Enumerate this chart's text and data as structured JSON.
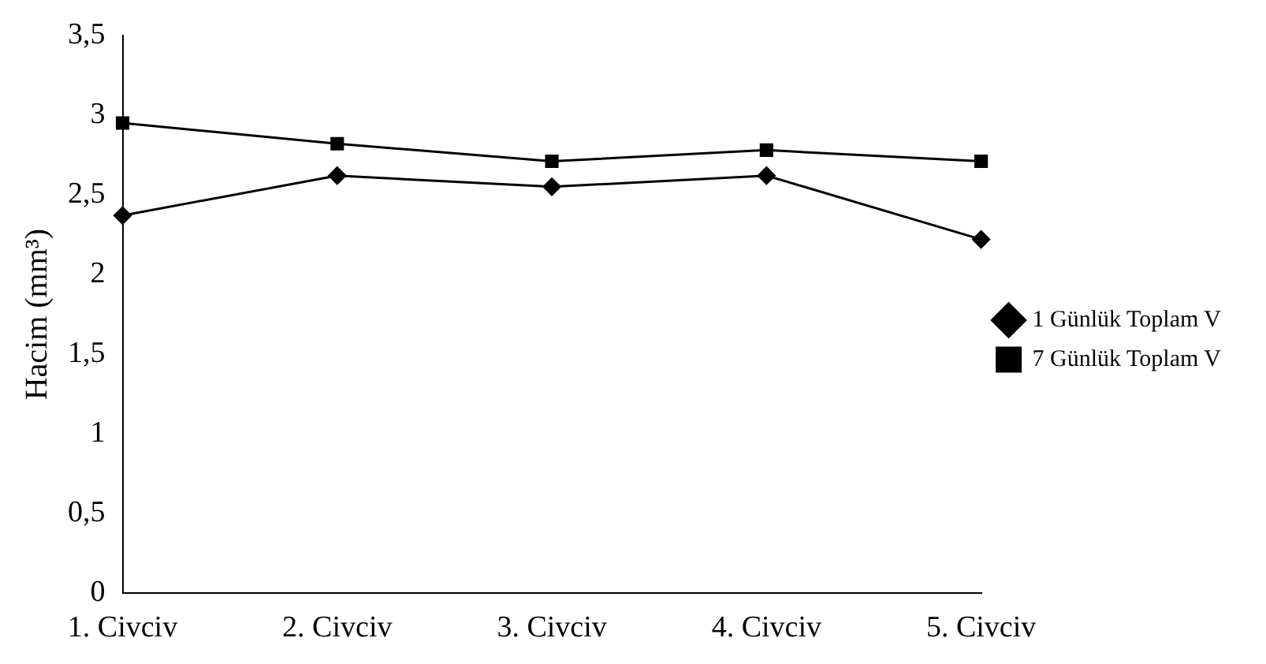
{
  "chart_data": {
    "type": "line",
    "ylabel": "Hacim (mm³)",
    "categories": [
      "1. Civciv",
      "2. Civciv",
      "3. Civciv",
      "4. Civciv",
      "5. Civciv"
    ],
    "series": [
      {
        "name": "1 Günlük Toplam V",
        "color": "#000000",
        "marker": "diamond",
        "values": [
          2.37,
          2.62,
          2.55,
          2.62,
          2.22
        ]
      },
      {
        "name": "7 Günlük Toplam V",
        "color": "#000000",
        "marker": "square",
        "values": [
          2.95,
          2.82,
          2.71,
          2.78,
          2.71
        ]
      }
    ],
    "ylim": [
      0,
      3.5
    ],
    "yticks": [
      0,
      {
        "value": 0.5,
        "label": "0,5"
      },
      1,
      {
        "value": 1.5,
        "label": "1,5"
      },
      2,
      {
        "value": 2.5,
        "label": "2,5"
      },
      3,
      {
        "value": 3.5,
        "label": "3,5"
      }
    ],
    "grid": false,
    "legend": "right",
    "line_style": "solid"
  }
}
